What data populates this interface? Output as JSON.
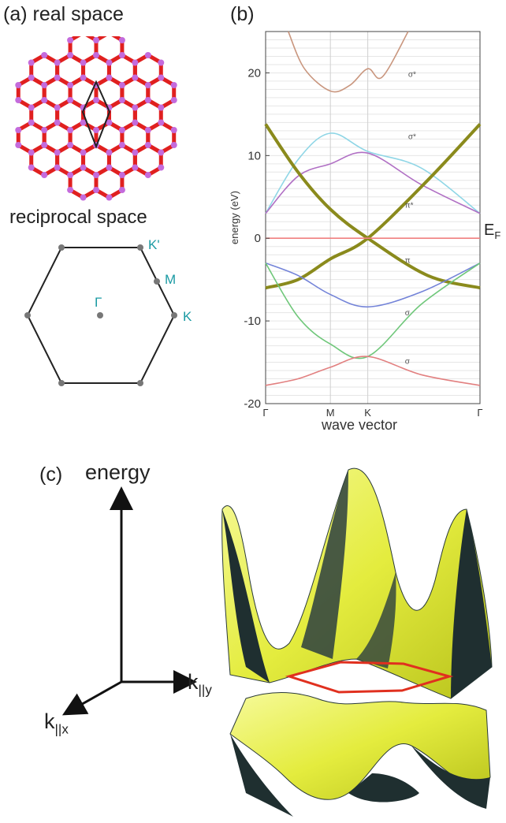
{
  "panel_a": {
    "label": "(a) real space",
    "reciprocal_title": "reciprocal space",
    "points": {
      "K_prime": "K'",
      "M": "M",
      "K": "K",
      "Gamma": "Γ"
    },
    "colors": {
      "bond": "#e0201f",
      "atom": "#c46bdc",
      "cell": "#222222",
      "label": "#1a9aa3"
    }
  },
  "panel_b": {
    "label": "(b)",
    "ef_label": "E",
    "ef_sub": "F",
    "chart_data": {
      "type": "line",
      "xlabel": "wave vector",
      "ylabel": "energy (eV)",
      "xticks": [
        "Γ",
        "M",
        "K",
        "Γ"
      ],
      "xtick_positions": [
        0,
        1,
        1.577,
        3.309
      ],
      "ylim": [
        -20,
        25
      ],
      "yticks": [
        20,
        10,
        0,
        -10,
        -20
      ],
      "grid": true,
      "band_labels": [
        "σ*",
        "σ*",
        "π*",
        "π",
        "σ",
        "σ"
      ],
      "series": [
        {
          "name": "σ* (upper)",
          "color": "#c9967e",
          "x": [
            0.35,
            0.6,
            1.0,
            1.3,
            1.577,
            1.8,
            2.2
          ],
          "y": [
            25,
            20.5,
            17.8,
            18.5,
            20.5,
            19.5,
            25
          ]
        },
        {
          "color": "#8fd6e6",
          "x": [
            0,
            0.5,
            1.0,
            1.577,
            2.4,
            3.309
          ],
          "y": [
            3,
            9.5,
            12.7,
            10.5,
            8.5,
            3
          ]
        },
        {
          "color": "#b06fc4",
          "x": [
            0,
            0.5,
            1.0,
            1.577,
            2.4,
            3.309
          ],
          "y": [
            3,
            7.5,
            9,
            10.3,
            6.5,
            3
          ]
        },
        {
          "color": "#8a8a1c",
          "x": [
            0,
            0.5,
            1.0,
            1.577,
            2.5,
            3.309
          ],
          "y": [
            13.8,
            8,
            3.5,
            0,
            -4.5,
            -6
          ]
        },
        {
          "color": "#8a8a1c",
          "x": [
            0,
            0.5,
            1.0,
            1.577,
            2.5,
            3.309
          ],
          "y": [
            -6,
            -5,
            -2.5,
            0,
            7,
            13.8
          ]
        },
        {
          "color": "#7383d8",
          "x": [
            0,
            0.5,
            1.0,
            1.577,
            2.4,
            3.309
          ],
          "y": [
            -3,
            -4.5,
            -6.8,
            -8.3,
            -6.5,
            -3
          ]
        },
        {
          "color": "#6fc77a",
          "x": [
            0,
            0.5,
            1.0,
            1.577,
            2.4,
            3.309
          ],
          "y": [
            -3,
            -9.5,
            -12.8,
            -14.3,
            -8,
            -3
          ]
        },
        {
          "color": "#e28080",
          "x": [
            0,
            0.5,
            1.0,
            1.577,
            2.4,
            3.309
          ],
          "y": [
            -17.8,
            -17,
            -15.6,
            -14.3,
            -16.5,
            -17.8
          ]
        },
        {
          "color": "#f08080",
          "x": [
            0,
            3.309
          ],
          "y": [
            0,
            0
          ]
        }
      ]
    }
  },
  "panel_c": {
    "label": "(c)",
    "axis_energy": "energy",
    "axis_ky": "k",
    "axis_ky_sub": "||y",
    "axis_kx": "k",
    "axis_kx_sub": "||x",
    "colors": {
      "surface": "#e8ef4a",
      "shadow": "#1f2f30",
      "ring": "#e0301f"
    }
  }
}
